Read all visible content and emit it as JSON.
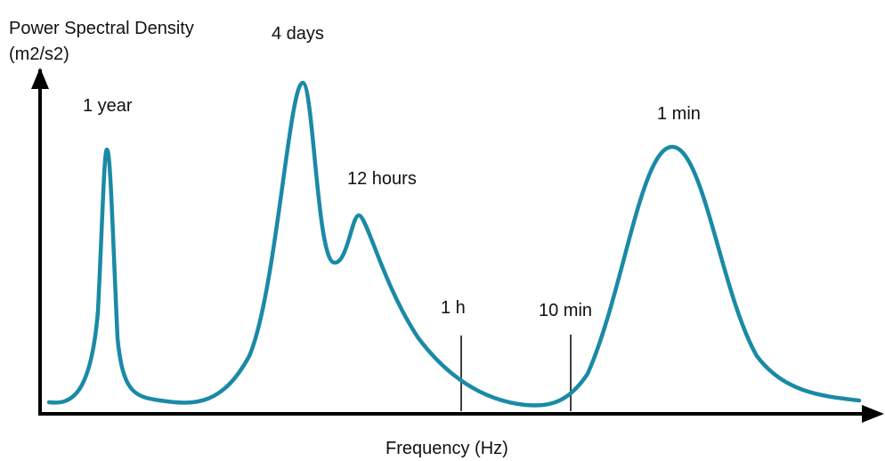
{
  "y_axis_label": [
    "Power Spectral Density",
    "(m2/s2)"
  ],
  "x_axis_label": "Frequency (Hz)",
  "peak_labels": [
    "1 year",
    "4 days",
    "12 hours",
    "1 min"
  ],
  "marker_labels": [
    "1 h",
    "10 min"
  ]
}
